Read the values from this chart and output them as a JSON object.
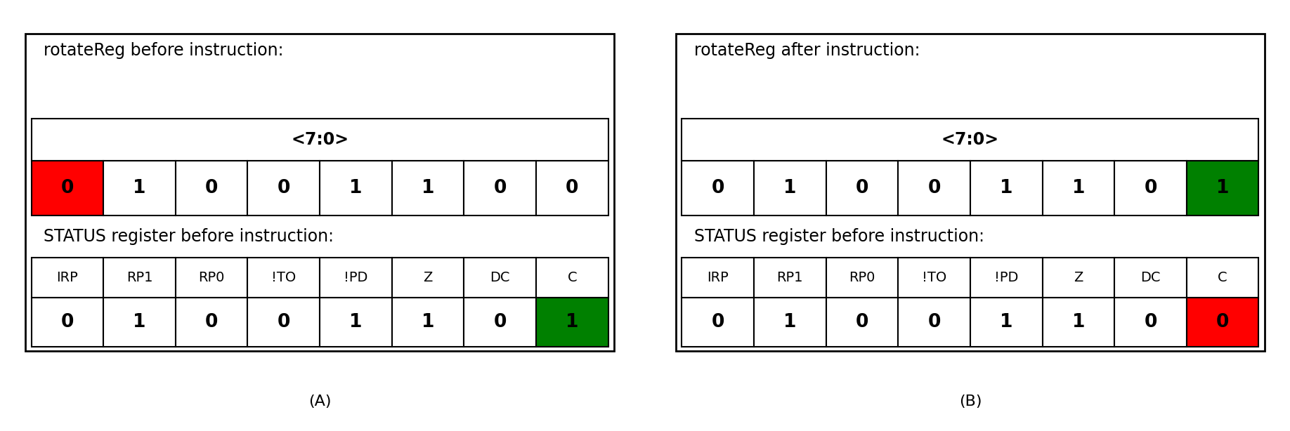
{
  "panel_A": {
    "title": "rotateReg before instruction:",
    "reg_label": "<7:0>",
    "reg_values": [
      "0",
      "1",
      "0",
      "0",
      "1",
      "1",
      "0",
      "0"
    ],
    "reg_colors": [
      "#ff0000",
      "#ffffff",
      "#ffffff",
      "#ffffff",
      "#ffffff",
      "#ffffff",
      "#ffffff",
      "#ffffff"
    ],
    "status_title": "STATUS register before instruction:",
    "status_headers": [
      "IRP",
      "RP1",
      "RP0",
      "!TO",
      "!PD",
      "Z",
      "DC",
      "C"
    ],
    "status_values": [
      "0",
      "1",
      "0",
      "0",
      "1",
      "1",
      "0",
      "1"
    ],
    "status_colors": [
      "#ffffff",
      "#ffffff",
      "#ffffff",
      "#ffffff",
      "#ffffff",
      "#ffffff",
      "#ffffff",
      "#008000"
    ],
    "caption": "(A)"
  },
  "panel_B": {
    "title": "rotateReg after instruction:",
    "reg_label": "<7:0>",
    "reg_values": [
      "0",
      "1",
      "0",
      "0",
      "1",
      "1",
      "0",
      "1"
    ],
    "reg_colors": [
      "#ffffff",
      "#ffffff",
      "#ffffff",
      "#ffffff",
      "#ffffff",
      "#ffffff",
      "#ffffff",
      "#008000"
    ],
    "status_title": "STATUS register before instruction:",
    "status_headers": [
      "IRP",
      "RP1",
      "RP0",
      "!TO",
      "!PD",
      "Z",
      "DC",
      "C"
    ],
    "status_values": [
      "0",
      "1",
      "0",
      "0",
      "1",
      "1",
      "0",
      "0"
    ],
    "status_colors": [
      "#ffffff",
      "#ffffff",
      "#ffffff",
      "#ffffff",
      "#ffffff",
      "#ffffff",
      "#ffffff",
      "#ff0000"
    ],
    "caption": "(B)"
  },
  "background_color": "#ffffff",
  "border_color": "#000000",
  "text_color": "#000000",
  "font_size_title": 17,
  "font_size_reg_label": 17,
  "font_size_cell": 19,
  "font_size_status_header": 14,
  "font_size_caption": 16
}
